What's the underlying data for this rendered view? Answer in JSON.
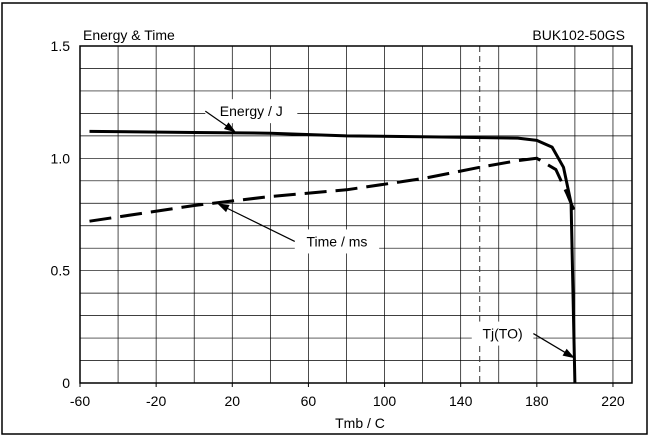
{
  "chart_data": {
    "type": "line",
    "title": "Energy & Time",
    "subtitle": "BUK102-50GS",
    "xlabel": "Tmb / C",
    "ylabel": "",
    "xlim": [
      -60,
      230
    ],
    "ylim": [
      0,
      1.5
    ],
    "x_ticks": [
      -60,
      -20,
      20,
      60,
      100,
      140,
      180,
      220
    ],
    "x_tick_labels": [
      "-60",
      "-20",
      "20",
      "60",
      "100",
      "140",
      "180",
      "220"
    ],
    "y_ticks": [
      0,
      0.5,
      1.0,
      1.5
    ],
    "y_tick_labels": [
      "0",
      "0.5",
      "1.0",
      "1.5"
    ],
    "grid": true,
    "series": [
      {
        "name": "Energy / J",
        "style": "solid",
        "x": [
          -55,
          0,
          40,
          80,
          130,
          170,
          180,
          188,
          194,
          198,
          200
        ],
        "y": [
          1.12,
          1.115,
          1.112,
          1.1,
          1.095,
          1.09,
          1.08,
          1.05,
          0.96,
          0.8,
          0.0
        ]
      },
      {
        "name": "Time / ms",
        "style": "dashed",
        "x": [
          -55,
          0,
          40,
          80,
          120,
          150,
          170,
          180,
          190,
          196,
          200
        ],
        "y": [
          0.72,
          0.79,
          0.83,
          0.86,
          0.91,
          0.96,
          0.99,
          1.0,
          0.95,
          0.84,
          0.76
        ]
      }
    ],
    "annotations": [
      {
        "text": "Energy / J",
        "x": 30,
        "y": 1.21,
        "arrow_to_x": 22,
        "arrow_to_y": 1.115
      },
      {
        "text": "Time / ms",
        "x": 75,
        "y": 0.63,
        "arrow_to_x": 12,
        "arrow_to_y": 0.8
      },
      {
        "text": "Tj(TO)",
        "x": 162,
        "y": 0.22,
        "arrow_to_x": 200,
        "arrow_to_y": 0.11
      }
    ],
    "reference_line": {
      "x": 150,
      "style": "dashed"
    }
  }
}
